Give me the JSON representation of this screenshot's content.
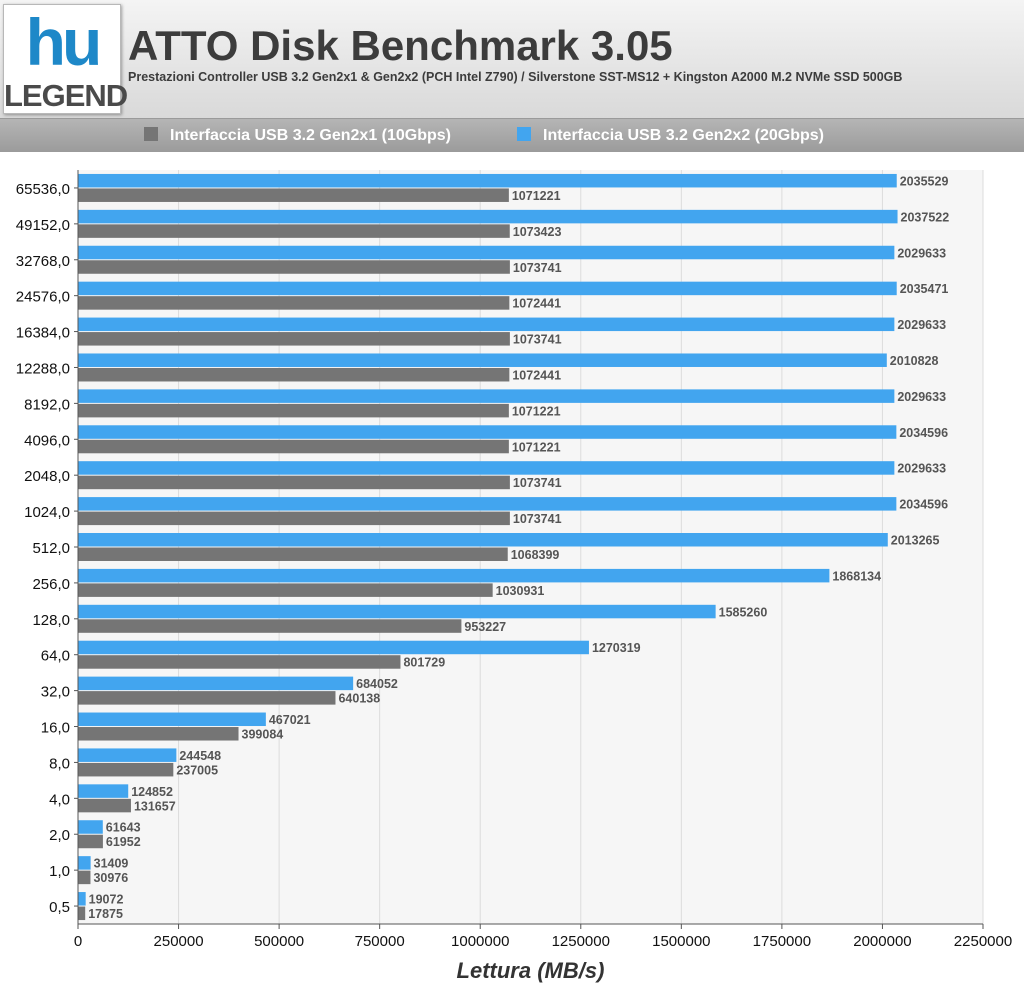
{
  "logo": {
    "mark": "hu",
    "word": "LEGEND"
  },
  "header": {
    "title": "ATTO Disk Benchmark 3.05",
    "subtitle": "Prestazioni Controller USB 3.2 Gen2x1 & Gen2x2 (PCH Intel Z790) / Silverstone SST-MS12 + Kingston A2000 M.2 NVMe SSD 500GB"
  },
  "colors": {
    "gen2x1": "#757575",
    "gen2x2": "#42a5ef"
  },
  "chart_data": {
    "type": "bar",
    "orientation": "horizontal",
    "title": "ATTO Disk Benchmark 3.05",
    "xlabel": "Lettura (MB/s)",
    "ylabel": "",
    "xlim": [
      0,
      2250000
    ],
    "xticks": [
      0,
      250000,
      500000,
      750000,
      1000000,
      1250000,
      1500000,
      1750000,
      2000000,
      2250000
    ],
    "grid": true,
    "legend": "top",
    "categories": [
      "65536,0",
      "49152,0",
      "32768,0",
      "24576,0",
      "16384,0",
      "12288,0",
      "8192,0",
      "4096,0",
      "2048,0",
      "1024,0",
      "512,0",
      "256,0",
      "128,0",
      "64,0",
      "32,0",
      "16,0",
      "8,0",
      "4,0",
      "2,0",
      "1,0",
      "0,5"
    ],
    "series": [
      {
        "name": "Interfaccia USB 3.2 Gen2x1 (10Gbps)",
        "color": "#757575",
        "values": [
          1071221,
          1073423,
          1073741,
          1072441,
          1073741,
          1072441,
          1071221,
          1071221,
          1073741,
          1073741,
          1068399,
          1030931,
          953227,
          801729,
          640138,
          399084,
          237005,
          131657,
          61952,
          30976,
          17875
        ]
      },
      {
        "name": "Interfaccia USB 3.2 Gen2x2 (20Gbps)",
        "color": "#42a5ef",
        "values": [
          2035529,
          2037522,
          2029633,
          2035471,
          2029633,
          2010828,
          2029633,
          2034596,
          2029633,
          2034596,
          2013265,
          1868134,
          1585260,
          1270319,
          684052,
          467021,
          244548,
          124852,
          61643,
          31409,
          19072
        ]
      }
    ]
  }
}
